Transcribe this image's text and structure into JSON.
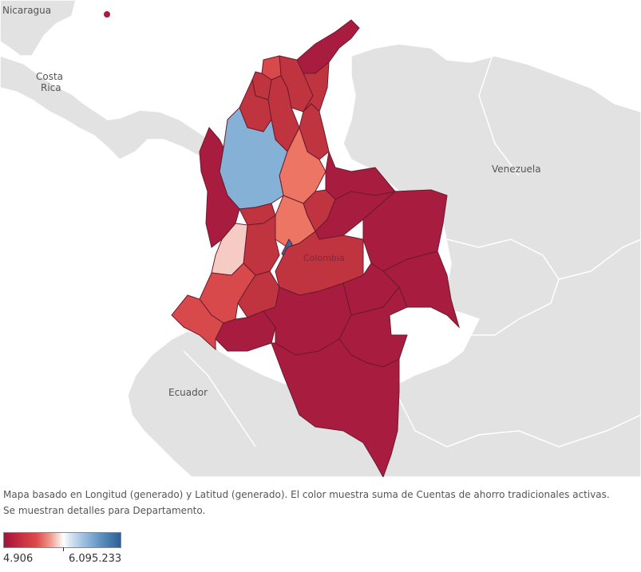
{
  "map": {
    "country_labels": {
      "nicaragua": "Nicaragua",
      "costa_rica_line1": "Costa",
      "costa_rica_line2": "Rica",
      "venezuela": "Venezuela",
      "colombia": "Colombia",
      "ecuador": "Ecuador"
    },
    "colors": {
      "ocean": "#ffffff",
      "land": "#e2e2e2",
      "border": "#ffffff",
      "dept_border": "#6a1a2c",
      "dark_red": "#a81c40",
      "red": "#c0343f",
      "red_mid": "#d8494b",
      "salmon": "#ec7563",
      "pink": "#f6cbc3",
      "light_blue": "#86b1d6",
      "dark_blue": "#3d6a9e"
    }
  },
  "caption": {
    "line1": "Mapa basado en Longitud (generado) y Latitud (generado).  El color muestra suma de Cuentas de ahorro tradicionales activas.",
    "line2": "Se muestran detalles para Departamento."
  },
  "legend": {
    "min_label": "4.906",
    "max_label": "6.095.233"
  }
}
